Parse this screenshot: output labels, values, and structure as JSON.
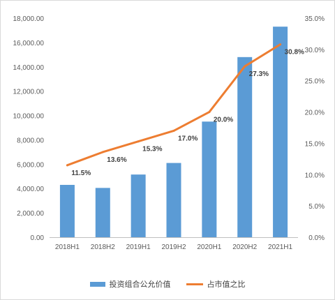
{
  "chart_data": {
    "type": "bar+line",
    "categories": [
      "2018H1",
      "2018H2",
      "2019H1",
      "2019H2",
      "2020H1",
      "2020H2",
      "2021H1"
    ],
    "series": [
      {
        "name": "投资组合公允价值",
        "type": "bar",
        "axis": "left",
        "color": "#5b9bd5",
        "values": [
          4300,
          4050,
          5150,
          6100,
          9500,
          14800,
          17300
        ]
      },
      {
        "name": "占市值之比",
        "type": "line",
        "axis": "right",
        "color": "#ed7d31",
        "values": [
          11.5,
          13.6,
          15.3,
          17.0,
          20.0,
          27.3,
          30.8
        ],
        "labels": [
          "11.5%",
          "13.6%",
          "15.3%",
          "17.0%",
          "20.0%",
          "27.3%",
          "30.8%"
        ]
      }
    ],
    "y_left": {
      "min": 0,
      "max": 18000,
      "step": 2000,
      "ticks": [
        "0.00",
        "2,000.00",
        "4,000.00",
        "6,000.00",
        "8,000.00",
        "10,000.00",
        "12,000.00",
        "14,000.00",
        "16,000.00",
        "18,000.00"
      ]
    },
    "y_right": {
      "min": 0,
      "max": 35,
      "step": 5,
      "ticks": [
        "0.0%",
        "5.0%",
        "10.0%",
        "15.0%",
        "20.0%",
        "25.0%",
        "30.0%",
        "35.0%"
      ]
    },
    "grid": false,
    "legend_position": "bottom"
  }
}
